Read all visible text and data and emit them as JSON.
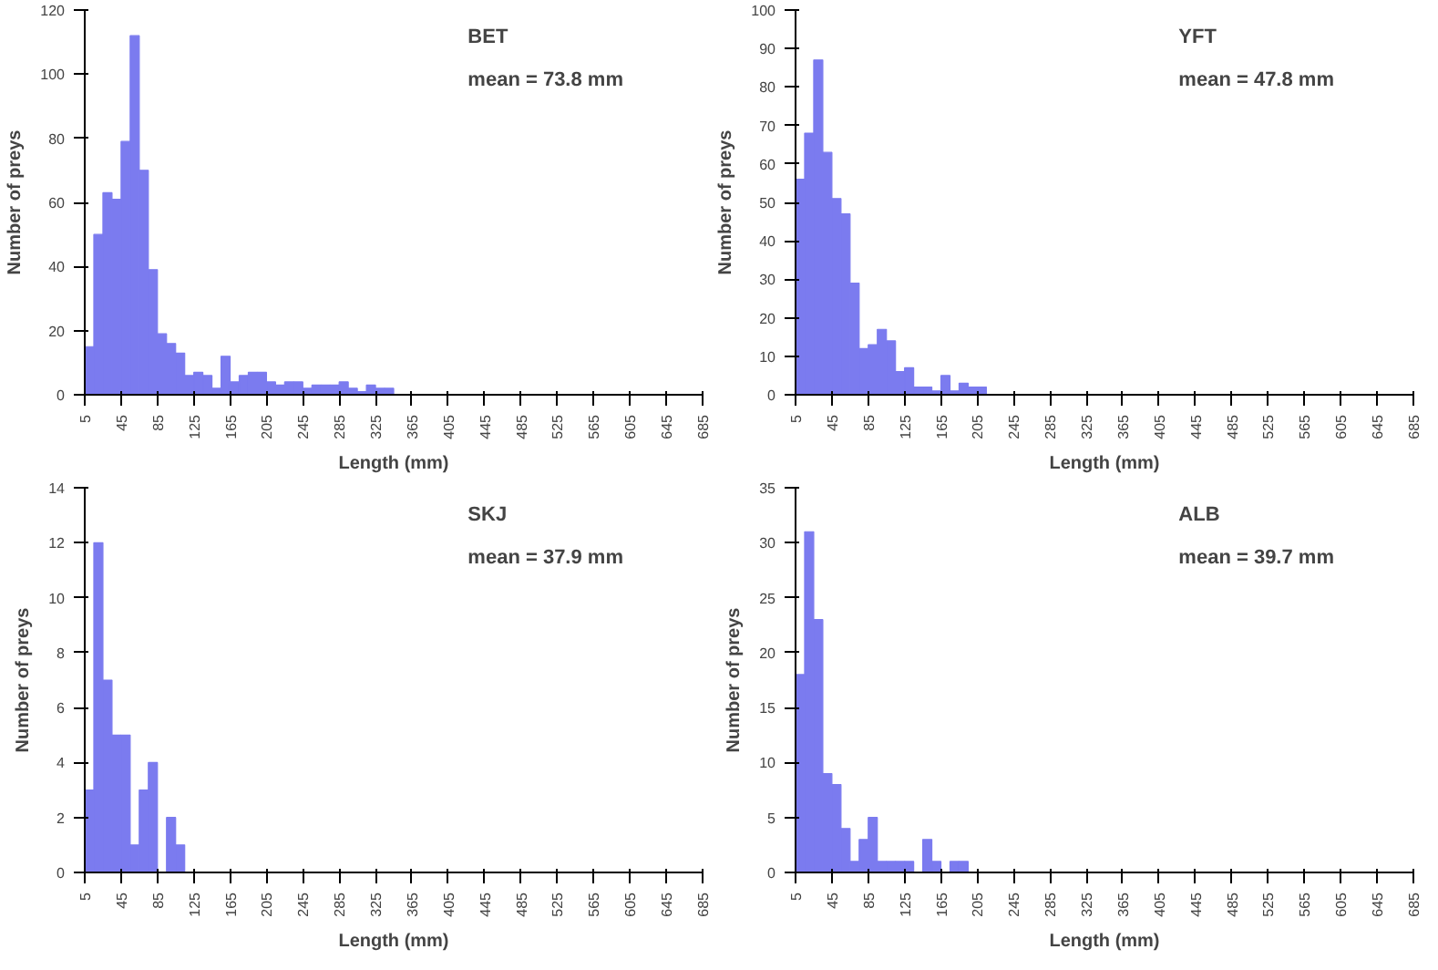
{
  "chart_data": [
    {
      "type": "histogram",
      "xlabel": "Length (mm)",
      "ylabel": "Number of preys",
      "annotations": [
        "BET",
        "mean = 73.8 mm"
      ],
      "color": "#7b7bef",
      "bins": [
        5,
        15,
        25,
        35,
        45,
        55,
        65,
        75,
        85,
        95,
        105,
        115,
        125,
        135,
        145,
        155,
        165,
        175,
        185,
        195,
        205,
        215,
        225,
        235,
        245,
        255,
        265,
        275,
        285,
        295,
        305,
        315,
        325,
        335,
        345,
        355,
        365,
        375,
        385,
        395,
        405,
        415,
        425,
        435,
        445,
        455,
        465,
        475,
        485,
        495,
        505,
        515,
        525,
        535,
        545,
        555,
        565,
        575,
        585,
        595,
        605,
        615,
        625,
        635,
        645,
        655,
        665,
        675,
        685
      ],
      "values": [
        15,
        50,
        63,
        61,
        79,
        112,
        70,
        39,
        19,
        16,
        13,
        6,
        7,
        6,
        2,
        12,
        4,
        6,
        7,
        7,
        4,
        3,
        4,
        4,
        2,
        3,
        3,
        3,
        4,
        2,
        1,
        3,
        2,
        2,
        0,
        0,
        0,
        0,
        0,
        0,
        0,
        0,
        0,
        0,
        0,
        0,
        0,
        0,
        0,
        0,
        0,
        0,
        0,
        0,
        0,
        0,
        0,
        0,
        0,
        0,
        0,
        0,
        0,
        0,
        0,
        0,
        0,
        0
      ],
      "xlim": [
        5,
        685
      ],
      "xticks": [
        5,
        45,
        85,
        125,
        165,
        205,
        245,
        285,
        325,
        365,
        405,
        445,
        485,
        525,
        565,
        605,
        645,
        685
      ],
      "ylim": [
        0,
        120
      ],
      "yticks": [
        0,
        20,
        40,
        60,
        80,
        100,
        120
      ],
      "grid": false
    },
    {
      "type": "histogram",
      "xlabel": "Length (mm)",
      "ylabel": "Number of preys",
      "annotations": [
        "YFT",
        "mean = 47.8 mm"
      ],
      "color": "#7b7bef",
      "bins": [
        5,
        15,
        25,
        35,
        45,
        55,
        65,
        75,
        85,
        95,
        105,
        115,
        125,
        135,
        145,
        155,
        165,
        175,
        185,
        195,
        205,
        215,
        225,
        235,
        245,
        255,
        265,
        275,
        285,
        295,
        305,
        315,
        325,
        335,
        345,
        355,
        365,
        375,
        385,
        395,
        405,
        415,
        425,
        435,
        445,
        455,
        465,
        475,
        485,
        495,
        505,
        515,
        525,
        535,
        545,
        555,
        565,
        575,
        585,
        595,
        605,
        615,
        625,
        635,
        645,
        655,
        665,
        675,
        685
      ],
      "values": [
        56,
        68,
        87,
        63,
        51,
        47,
        29,
        12,
        13,
        17,
        14,
        6,
        7,
        2,
        2,
        1,
        5,
        1,
        3,
        2,
        2,
        0,
        0,
        0,
        0,
        0,
        0,
        0,
        0,
        0,
        0,
        0,
        0,
        0,
        0,
        0,
        0,
        0,
        0,
        0,
        0,
        0,
        0,
        0,
        0,
        0,
        0,
        0,
        0,
        0,
        0,
        0,
        0,
        0,
        0,
        0,
        0,
        0,
        0,
        0,
        0,
        0,
        0,
        0,
        0,
        0,
        0,
        0
      ],
      "xlim": [
        5,
        685
      ],
      "xticks": [
        5,
        45,
        85,
        125,
        165,
        205,
        245,
        285,
        325,
        365,
        405,
        445,
        485,
        525,
        565,
        605,
        645,
        685
      ],
      "ylim": [
        0,
        100
      ],
      "yticks": [
        0,
        10,
        20,
        30,
        40,
        50,
        60,
        70,
        80,
        90,
        100
      ],
      "grid": false
    },
    {
      "type": "histogram",
      "xlabel": "Length (mm)",
      "ylabel": "Number of preys",
      "annotations": [
        "SKJ",
        "mean = 37.9 mm"
      ],
      "color": "#7b7bef",
      "bins": [
        5,
        15,
        25,
        35,
        45,
        55,
        65,
        75,
        85,
        95,
        105,
        115,
        125,
        135,
        145,
        155,
        165,
        175,
        185,
        195,
        205,
        215,
        225,
        235,
        245,
        255,
        265,
        275,
        285,
        295,
        305,
        315,
        325,
        335,
        345,
        355,
        365,
        375,
        385,
        395,
        405,
        415,
        425,
        435,
        445,
        455,
        465,
        475,
        485,
        495,
        505,
        515,
        525,
        535,
        545,
        555,
        565,
        575,
        585,
        595,
        605,
        615,
        625,
        635,
        645,
        655,
        665,
        675,
        685
      ],
      "values": [
        3,
        12,
        7,
        5,
        5,
        1,
        3,
        4,
        0,
        2,
        1,
        0,
        0,
        0,
        0,
        0,
        0,
        0,
        0,
        0,
        0,
        0,
        0,
        0,
        0,
        0,
        0,
        0,
        0,
        0,
        0,
        0,
        0,
        0,
        0,
        0,
        0,
        0,
        0,
        0,
        0,
        0,
        0,
        0,
        0,
        0,
        0,
        0,
        0,
        0,
        0,
        0,
        0,
        0,
        0,
        0,
        0,
        0,
        0,
        0,
        0,
        0,
        0,
        0,
        0,
        0,
        0,
        0
      ],
      "xlim": [
        5,
        685
      ],
      "xticks": [
        5,
        45,
        85,
        125,
        165,
        205,
        245,
        285,
        325,
        365,
        405,
        445,
        485,
        525,
        565,
        605,
        645,
        685
      ],
      "ylim": [
        0,
        14
      ],
      "yticks": [
        0,
        2,
        4,
        6,
        8,
        10,
        12,
        14
      ],
      "grid": false
    },
    {
      "type": "histogram",
      "xlabel": "Length (mm)",
      "ylabel": "Number of preys",
      "annotations": [
        "ALB",
        "mean = 39.7 mm"
      ],
      "color": "#7b7bef",
      "bins": [
        5,
        15,
        25,
        35,
        45,
        55,
        65,
        75,
        85,
        95,
        105,
        115,
        125,
        135,
        145,
        155,
        165,
        175,
        185,
        195,
        205,
        215,
        225,
        235,
        245,
        255,
        265,
        275,
        285,
        295,
        305,
        315,
        325,
        335,
        345,
        355,
        365,
        375,
        385,
        395,
        405,
        415,
        425,
        435,
        445,
        455,
        465,
        475,
        485,
        495,
        505,
        515,
        525,
        535,
        545,
        555,
        565,
        575,
        585,
        595,
        605,
        615,
        625,
        635,
        645,
        655,
        665,
        675,
        685
      ],
      "values": [
        18,
        31,
        23,
        9,
        8,
        4,
        1,
        3,
        5,
        1,
        1,
        1,
        1,
        0,
        3,
        1,
        0,
        1,
        1,
        0,
        0,
        0,
        0,
        0,
        0,
        0,
        0,
        0,
        0,
        0,
        0,
        0,
        0,
        0,
        0,
        0,
        0,
        0,
        0,
        0,
        0,
        0,
        0,
        0,
        0,
        0,
        0,
        0,
        0,
        0,
        0,
        0,
        0,
        0,
        0,
        0,
        0,
        0,
        0,
        0,
        0,
        0,
        0,
        0,
        0,
        0,
        0,
        0
      ],
      "xlim": [
        5,
        685
      ],
      "xticks": [
        5,
        45,
        85,
        125,
        165,
        205,
        245,
        285,
        325,
        365,
        405,
        445,
        485,
        525,
        565,
        605,
        645,
        685
      ],
      "ylim": [
        0,
        35
      ],
      "yticks": [
        0,
        5,
        10,
        15,
        20,
        25,
        30,
        35
      ],
      "grid": false
    }
  ]
}
